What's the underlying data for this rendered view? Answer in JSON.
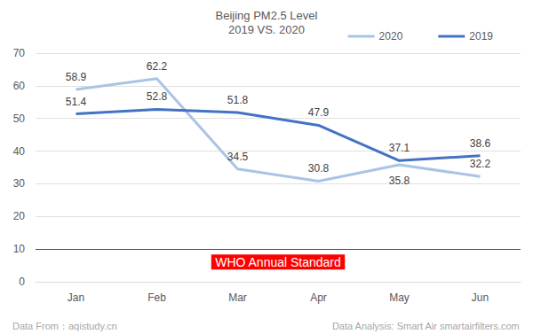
{
  "chart_data": {
    "type": "line",
    "title": "Beijing PM2.5 Level",
    "subtitle": "2019 VS. 2020",
    "categories": [
      "Jan",
      "Feb",
      "Mar",
      "Apr",
      "May",
      "Jun"
    ],
    "series": [
      {
        "name": "2020",
        "color": "#a9c4e4",
        "values": [
          58.9,
          62.2,
          34.5,
          30.8,
          35.8,
          32.2
        ]
      },
      {
        "name": "2019",
        "color": "#4472c4",
        "values": [
          51.4,
          52.8,
          51.8,
          47.9,
          37.1,
          38.6
        ]
      }
    ],
    "ylim": [
      0,
      70
    ],
    "yticks": [
      0,
      10,
      20,
      30,
      40,
      50,
      60,
      70
    ],
    "grid": true,
    "legend": "top-right",
    "data_labels": true,
    "annotations": [
      {
        "text": "WHO Annual Standard",
        "y": 10,
        "color": "#ff0000"
      }
    ],
    "source": "Data From：aqistudy.cn",
    "credit": "Data Analysis: Smart Air smartairfilters.com"
  }
}
